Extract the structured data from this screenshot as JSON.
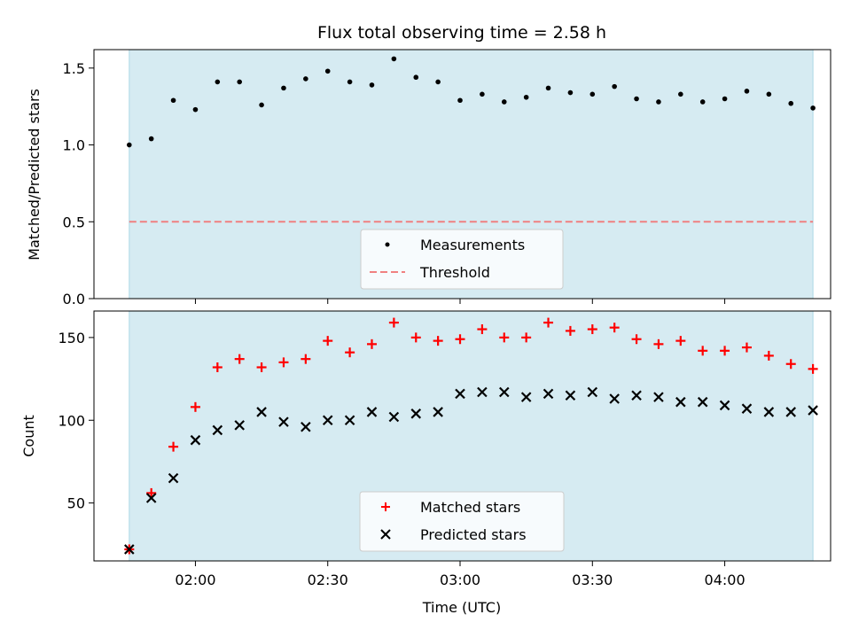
{
  "chart_data": [
    {
      "type": "scatter",
      "title": "Flux total observing time = 2.58 h",
      "xlabel": "",
      "ylabel": "Matched/Predicted stars",
      "x": [
        "01:45",
        "01:50",
        "01:55",
        "02:00",
        "02:05",
        "02:10",
        "02:15",
        "02:20",
        "02:25",
        "02:30",
        "02:35",
        "02:40",
        "02:45",
        "02:50",
        "02:55",
        "03:00",
        "03:05",
        "03:10",
        "03:15",
        "03:20",
        "03:25",
        "03:30",
        "03:35",
        "03:40",
        "03:45",
        "03:50",
        "03:55",
        "04:00",
        "04:05",
        "04:10",
        "04:15",
        "04:20"
      ],
      "xlim": [
        "01:37",
        "04:24"
      ],
      "ylim": [
        0,
        1.62
      ],
      "yticks": [
        0.0,
        0.5,
        1.0,
        1.5
      ],
      "ytick_labels": [
        "0.0",
        "0.5",
        "1.0",
        "1.5"
      ],
      "shaded_span": [
        "01:45",
        "04:20"
      ],
      "shade_color": "#add8e6",
      "series": [
        {
          "name": "Measurements",
          "kind": "points",
          "color": "#000000",
          "values": [
            1.0,
            1.04,
            1.29,
            1.23,
            1.41,
            1.41,
            1.26,
            1.37,
            1.43,
            1.48,
            1.41,
            1.39,
            1.56,
            1.44,
            1.41,
            1.29,
            1.33,
            1.28,
            1.31,
            1.37,
            1.34,
            1.33,
            1.38,
            1.3,
            1.28,
            1.33,
            1.28,
            1.3,
            1.35,
            1.33,
            1.27,
            1.24
          ]
        },
        {
          "name": "Threshold",
          "kind": "dashed-line",
          "color": "#f08080",
          "value": 0.5
        }
      ],
      "legend": "lower-center"
    },
    {
      "type": "scatter",
      "title": "",
      "xlabel": "Time (UTC)",
      "ylabel": "Count",
      "x": [
        "01:45",
        "01:50",
        "01:55",
        "02:00",
        "02:05",
        "02:10",
        "02:15",
        "02:20",
        "02:25",
        "02:30",
        "02:35",
        "02:40",
        "02:45",
        "02:50",
        "02:55",
        "03:00",
        "03:05",
        "03:10",
        "03:15",
        "03:20",
        "03:25",
        "03:30",
        "03:35",
        "03:40",
        "03:45",
        "03:50",
        "03:55",
        "04:00",
        "04:05",
        "04:10",
        "04:15",
        "04:20"
      ],
      "xlim": [
        "01:37",
        "04:24"
      ],
      "xticks": [
        "02:00",
        "02:30",
        "03:00",
        "03:30",
        "04:00"
      ],
      "ylim": [
        15,
        166
      ],
      "yticks": [
        50,
        100,
        150
      ],
      "ytick_labels": [
        "50",
        "100",
        "150"
      ],
      "shaded_span": [
        "01:45",
        "04:20"
      ],
      "shade_color": "#add8e6",
      "series": [
        {
          "name": "Matched stars",
          "marker": "+",
          "color": "#ff0000",
          "values": [
            22,
            56,
            84,
            108,
            132,
            137,
            132,
            135,
            137,
            148,
            141,
            146,
            159,
            150,
            148,
            149,
            155,
            150,
            150,
            159,
            154,
            155,
            156,
            149,
            146,
            148,
            142,
            142,
            144,
            139,
            134,
            131
          ]
        },
        {
          "name": "Predicted stars",
          "marker": "x",
          "color": "#000000",
          "values": [
            22,
            53,
            65,
            88,
            94,
            97,
            105,
            99,
            96,
            100,
            100,
            105,
            102,
            104,
            105,
            116,
            117,
            117,
            114,
            116,
            115,
            117,
            113,
            115,
            114,
            111,
            111,
            109,
            107,
            105,
            105,
            106
          ]
        }
      ],
      "legend": "lower-center"
    }
  ]
}
